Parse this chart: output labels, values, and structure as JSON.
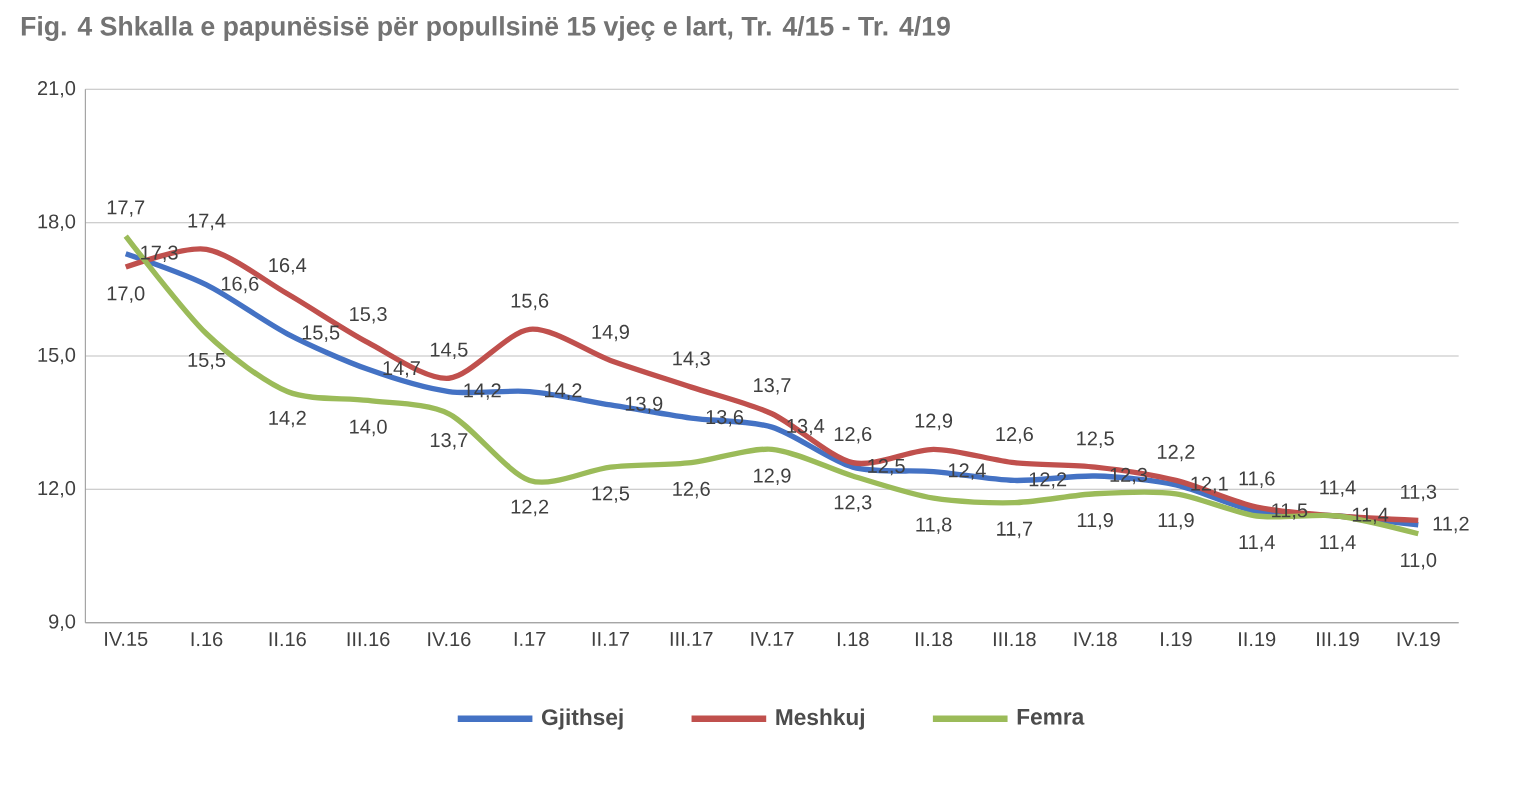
{
  "chart_data": {
    "type": "line",
    "title": "Fig. 4 Shkalla e papunësisë për popullsinë 15 vjeç e lart, Tr. 4/15 - Tr. 4/19",
    "categories": [
      "IV.15",
      "I.16",
      "II.16",
      "III.16",
      "IV.16",
      "I.17",
      "II.17",
      "III.17",
      "IV.17",
      "I.18",
      "II.18",
      "III.18",
      "IV.18",
      "I.19",
      "II.19",
      "III.19",
      "IV.19"
    ],
    "series": [
      {
        "name": "Gjithsej",
        "color": "#4472c4",
        "values": [
          17.3,
          16.6,
          15.5,
          14.7,
          14.2,
          14.2,
          13.9,
          13.6,
          13.4,
          12.5,
          12.4,
          12.2,
          12.3,
          12.1,
          11.5,
          11.4,
          11.2
        ],
        "value_labels": [
          "17,3",
          "16,6",
          "15,5",
          "14,7",
          "14,2",
          "14,2",
          "13,9",
          "13,6",
          "13,4",
          "12,5",
          "12,4",
          "12,2",
          "12,3",
          "12,1",
          "11,5",
          "11,4",
          "11,2"
        ]
      },
      {
        "name": "Meshkuj",
        "color": "#c0504d",
        "values": [
          17.0,
          17.4,
          16.4,
          15.3,
          14.5,
          15.6,
          14.9,
          14.3,
          13.7,
          12.6,
          12.9,
          12.6,
          12.5,
          12.2,
          11.6,
          11.4,
          11.3
        ],
        "value_labels": [
          "17,0",
          "17,4",
          "16,4",
          "15,3",
          "14,5",
          "15,6",
          "14,9",
          "14,3",
          "13,7",
          "12,6",
          "12,9",
          "12,6",
          "12,5",
          "12,2",
          "11,6",
          "11,4",
          "11,3"
        ]
      },
      {
        "name": "Femra",
        "color": "#9bbb59",
        "values": [
          17.7,
          15.5,
          14.2,
          14.0,
          13.7,
          12.2,
          12.5,
          12.6,
          12.9,
          12.3,
          11.8,
          11.7,
          11.9,
          11.9,
          11.4,
          11.4,
          11.0
        ],
        "value_labels": [
          "17,7",
          "15,5",
          "14,2",
          "14,0",
          "13,7",
          "12,2",
          "12,5",
          "12,6",
          "12,9",
          "12,3",
          "11,8",
          "11,7",
          "11,9",
          "11,9",
          "11,4",
          "11,4",
          "11,0"
        ]
      }
    ],
    "ylim": [
      9,
      21
    ],
    "yticks": [
      {
        "value": 9,
        "label": "9,0"
      },
      {
        "value": 12,
        "label": "12,0"
      },
      {
        "value": 15,
        "label": "15,0"
      },
      {
        "value": 18,
        "label": "18,0"
      },
      {
        "value": 21,
        "label": "21,0"
      }
    ],
    "grid": "y",
    "legend": "bottom",
    "marker": "none",
    "line_style": "solid"
  }
}
